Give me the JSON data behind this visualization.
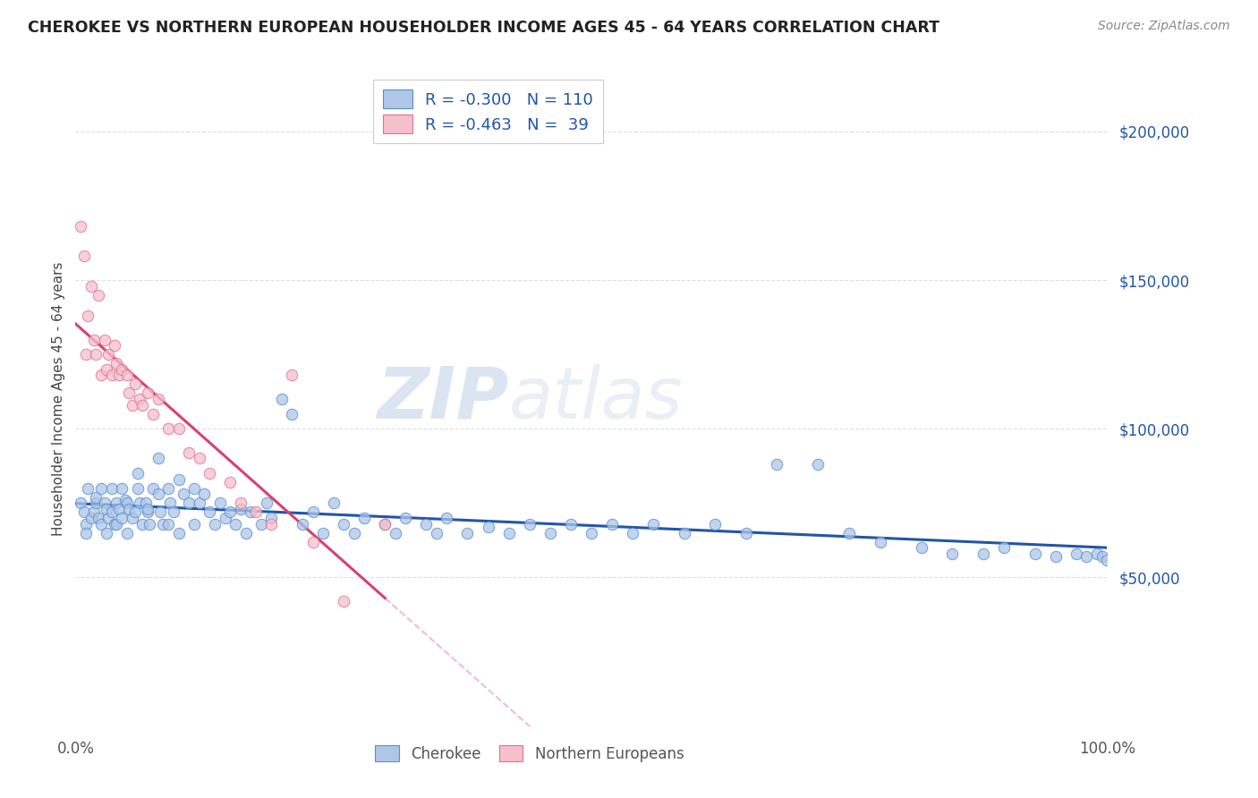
{
  "title": "CHEROKEE VS NORTHERN EUROPEAN HOUSEHOLDER INCOME AGES 45 - 64 YEARS CORRELATION CHART",
  "source": "Source: ZipAtlas.com",
  "ylabel": "Householder Income Ages 45 - 64 years",
  "xlim": [
    0,
    1.0
  ],
  "ylim": [
    0,
    220000
  ],
  "ytick_values": [
    50000,
    100000,
    150000,
    200000
  ],
  "background_color": "#ffffff",
  "grid_color": "#d0d0d0",
  "cherokee_color": "#aec6e8",
  "cherokee_edge_color": "#5b8ecb",
  "cherokee_line_color": "#2255aa",
  "cherokee_R": -0.3,
  "cherokee_N": 110,
  "northern_eu_color": "#f5c0cc",
  "northern_eu_edge_color": "#e07090",
  "northern_eu_line_color": "#d94070",
  "northern_eu_R": -0.463,
  "northern_eu_N": 39,
  "cherokee_x": [
    0.005,
    0.008,
    0.01,
    0.012,
    0.015,
    0.01,
    0.018,
    0.02,
    0.022,
    0.025,
    0.02,
    0.025,
    0.028,
    0.03,
    0.032,
    0.03,
    0.035,
    0.038,
    0.035,
    0.04,
    0.042,
    0.04,
    0.045,
    0.048,
    0.045,
    0.05,
    0.052,
    0.055,
    0.05,
    0.058,
    0.06,
    0.062,
    0.065,
    0.06,
    0.068,
    0.07,
    0.072,
    0.075,
    0.07,
    0.08,
    0.082,
    0.085,
    0.08,
    0.09,
    0.092,
    0.095,
    0.09,
    0.1,
    0.105,
    0.11,
    0.1,
    0.115,
    0.12,
    0.115,
    0.13,
    0.125,
    0.135,
    0.14,
    0.145,
    0.15,
    0.155,
    0.16,
    0.165,
    0.17,
    0.18,
    0.185,
    0.19,
    0.2,
    0.21,
    0.22,
    0.23,
    0.24,
    0.25,
    0.26,
    0.27,
    0.28,
    0.3,
    0.31,
    0.32,
    0.34,
    0.35,
    0.36,
    0.38,
    0.4,
    0.42,
    0.44,
    0.46,
    0.48,
    0.5,
    0.52,
    0.54,
    0.56,
    0.59,
    0.62,
    0.65,
    0.68,
    0.72,
    0.75,
    0.78,
    0.82,
    0.85,
    0.88,
    0.9,
    0.93,
    0.95,
    0.97,
    0.98,
    0.99,
    0.995,
    1.0
  ],
  "cherokee_y": [
    75000,
    72000,
    68000,
    80000,
    70000,
    65000,
    72000,
    75000,
    70000,
    68000,
    77000,
    80000,
    75000,
    73000,
    70000,
    65000,
    72000,
    68000,
    80000,
    75000,
    73000,
    68000,
    80000,
    76000,
    70000,
    75000,
    73000,
    70000,
    65000,
    72000,
    80000,
    75000,
    68000,
    85000,
    75000,
    72000,
    68000,
    80000,
    73000,
    78000,
    72000,
    68000,
    90000,
    80000,
    75000,
    72000,
    68000,
    83000,
    78000,
    75000,
    65000,
    80000,
    75000,
    68000,
    72000,
    78000,
    68000,
    75000,
    70000,
    72000,
    68000,
    73000,
    65000,
    72000,
    68000,
    75000,
    70000,
    110000,
    105000,
    68000,
    72000,
    65000,
    75000,
    68000,
    65000,
    70000,
    68000,
    65000,
    70000,
    68000,
    65000,
    70000,
    65000,
    67000,
    65000,
    68000,
    65000,
    68000,
    65000,
    68000,
    65000,
    68000,
    65000,
    68000,
    65000,
    88000,
    88000,
    65000,
    62000,
    60000,
    58000,
    58000,
    60000,
    58000,
    57000,
    58000,
    57000,
    58000,
    57000,
    56000
  ],
  "northern_eu_x": [
    0.005,
    0.008,
    0.01,
    0.012,
    0.015,
    0.018,
    0.02,
    0.022,
    0.025,
    0.028,
    0.03,
    0.032,
    0.035,
    0.038,
    0.04,
    0.042,
    0.045,
    0.05,
    0.052,
    0.055,
    0.058,
    0.062,
    0.065,
    0.07,
    0.075,
    0.08,
    0.09,
    0.1,
    0.11,
    0.12,
    0.13,
    0.15,
    0.16,
    0.175,
    0.19,
    0.21,
    0.23,
    0.26,
    0.3
  ],
  "northern_eu_y": [
    168000,
    158000,
    125000,
    138000,
    148000,
    130000,
    125000,
    145000,
    118000,
    130000,
    120000,
    125000,
    118000,
    128000,
    122000,
    118000,
    120000,
    118000,
    112000,
    108000,
    115000,
    110000,
    108000,
    112000,
    105000,
    110000,
    100000,
    100000,
    92000,
    90000,
    85000,
    82000,
    75000,
    72000,
    68000,
    118000,
    62000,
    42000,
    68000
  ]
}
